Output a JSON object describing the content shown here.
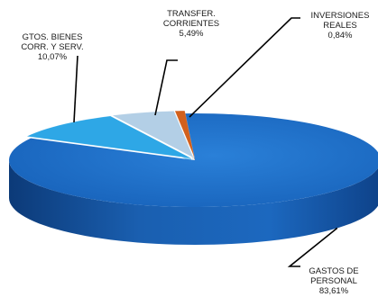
{
  "chart_data": {
    "type": "pie",
    "style": "3d-exploded",
    "title": "",
    "slices": [
      {
        "name": "GASTOS DE PERSONAL",
        "label_lines": [
          "GASTOS DE",
          "PERSONAL"
        ],
        "value_label": "83,61%",
        "value": 83.61,
        "color": "#1f6fc8"
      },
      {
        "name": "GTOS. BIENES CORR. Y SERV.",
        "label_lines": [
          "GTOS. BIENES",
          "CORR. Y SERV."
        ],
        "value_label": "10,07%",
        "value": 10.07,
        "color": "#2ea7e6"
      },
      {
        "name": "TRANSFER. CORRIENTES",
        "label_lines": [
          "TRANSFER.",
          "CORRIENTES"
        ],
        "value_label": "5,49%",
        "value": 5.49,
        "color": "#b3cfe6"
      },
      {
        "name": "INVERSIONES REALES",
        "label_lines": [
          "INVERSIONES",
          "REALES"
        ],
        "value_label": "0,84%",
        "value": 0.84,
        "color": "#d2601c"
      }
    ]
  }
}
